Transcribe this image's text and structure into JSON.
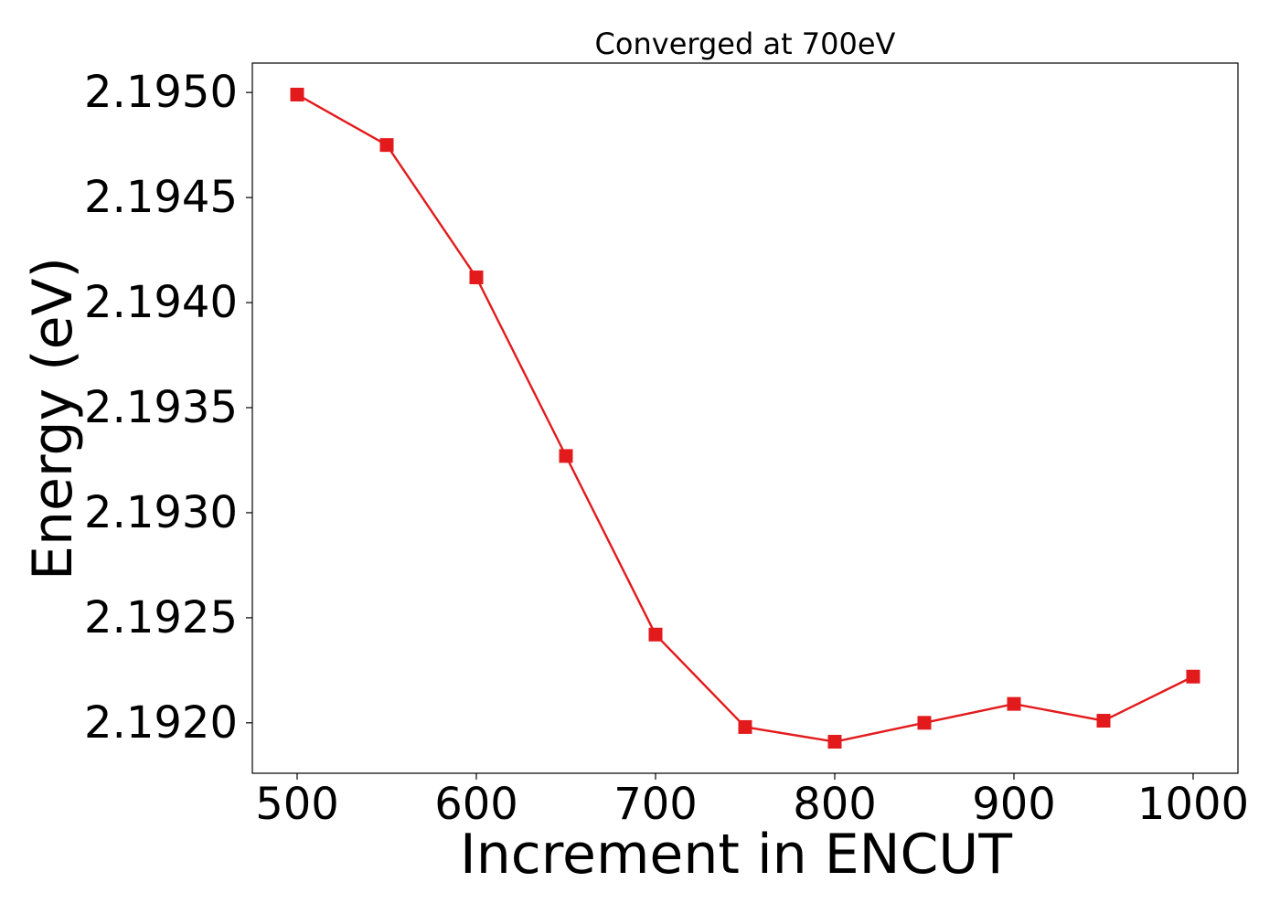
{
  "chart_data": {
    "type": "line",
    "title": "Converged at 700eV",
    "xlabel": "Increment in ENCUT",
    "ylabel": "Energy (eV)",
    "x": [
      500,
      550,
      600,
      650,
      700,
      750,
      800,
      850,
      900,
      950,
      1000
    ],
    "series": [
      {
        "values": [
          2.19499,
          2.19475,
          2.19412,
          2.19327,
          2.19242,
          2.19198,
          2.19191,
          2.192,
          2.19209,
          2.19201,
          2.19222
        ],
        "color": "#e31a1c",
        "marker": "square"
      }
    ],
    "x_ticks": [
      "500",
      "600",
      "700",
      "800",
      "900",
      "1000"
    ],
    "x_tick_values": [
      500,
      600,
      700,
      800,
      900,
      1000
    ],
    "y_ticks": [
      "2.1920",
      "2.1925",
      "2.1930",
      "2.1935",
      "2.1940",
      "2.1945",
      "2.1950"
    ],
    "y_tick_values": [
      2.192,
      2.1925,
      2.193,
      2.1935,
      2.194,
      2.1945,
      2.195
    ],
    "xlim": [
      475,
      1025
    ],
    "ylim": [
      2.19176,
      2.19514
    ],
    "grid": false,
    "legend": "none"
  }
}
